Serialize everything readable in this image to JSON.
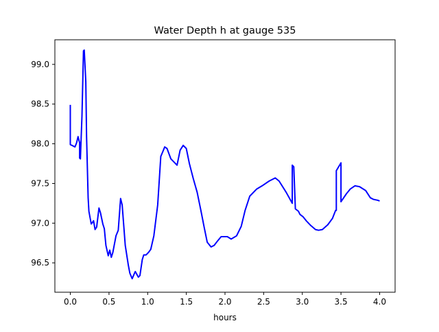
{
  "chart_data": {
    "type": "line",
    "title": "Water Depth h at gauge 535",
    "xlabel": "hours",
    "ylabel": "",
    "xlim": [
      -0.2,
      4.2
    ],
    "ylim": [
      96.13,
      99.31
    ],
    "xticks": [
      0.0,
      0.5,
      1.0,
      1.5,
      2.0,
      2.5,
      3.0,
      3.5,
      4.0
    ],
    "xtick_labels": [
      "0.0",
      "0.5",
      "1.0",
      "1.5",
      "2.0",
      "2.5",
      "3.0",
      "3.5",
      "4.0"
    ],
    "yticks": [
      96.5,
      97.0,
      97.5,
      98.0,
      98.5,
      99.0
    ],
    "ytick_labels": [
      "96.5",
      "97.0",
      "97.5",
      "98.0",
      "98.5",
      "99.0"
    ],
    "grid": false,
    "series": [
      {
        "name": "h",
        "color": "#0000ff",
        "x": [
          0.0,
          0.0,
          0.02,
          0.06,
          0.08,
          0.1,
          0.12,
          0.12,
          0.13,
          0.15,
          0.17,
          0.18,
          0.2,
          0.21,
          0.23,
          0.24,
          0.27,
          0.28,
          0.3,
          0.32,
          0.34,
          0.37,
          0.39,
          0.42,
          0.44,
          0.46,
          0.49,
          0.51,
          0.53,
          0.55,
          0.59,
          0.62,
          0.65,
          0.67,
          0.71,
          0.75,
          0.77,
          0.8,
          0.83,
          0.84,
          0.88,
          0.9,
          0.93,
          0.95,
          0.98,
          1.01,
          1.04,
          1.08,
          1.13,
          1.17,
          1.2,
          1.22,
          1.25,
          1.3,
          1.38,
          1.42,
          1.46,
          1.5,
          1.54,
          1.59,
          1.64,
          1.69,
          1.73,
          1.77,
          1.82,
          1.86,
          1.9,
          1.95,
          2.0,
          2.03,
          2.08,
          2.15,
          2.21,
          2.26,
          2.32,
          2.41,
          2.48,
          2.57,
          2.65,
          2.7,
          2.79,
          2.87,
          2.87,
          2.89,
          2.91,
          2.95,
          2.97,
          3.01,
          3.05,
          3.11,
          3.17,
          3.21,
          3.26,
          3.33,
          3.39,
          3.43,
          3.44,
          3.44,
          3.5,
          3.5,
          3.57,
          3.62,
          3.68,
          3.74,
          3.82,
          3.88,
          3.92,
          3.97,
          4.0
        ],
        "y": [
          98.49,
          97.99,
          97.98,
          97.96,
          98.01,
          98.09,
          98.01,
          97.82,
          97.81,
          98.35,
          99.17,
          99.18,
          98.78,
          98.09,
          97.32,
          97.15,
          96.99,
          97.0,
          97.03,
          96.92,
          96.95,
          97.19,
          97.13,
          96.99,
          96.93,
          96.72,
          96.59,
          96.66,
          96.57,
          96.63,
          96.84,
          96.91,
          97.31,
          97.23,
          96.72,
          96.47,
          96.37,
          96.3,
          96.37,
          96.39,
          96.32,
          96.34,
          96.54,
          96.6,
          96.6,
          96.63,
          96.67,
          96.84,
          97.23,
          97.84,
          97.91,
          97.96,
          97.94,
          97.81,
          97.73,
          97.92,
          97.98,
          97.94,
          97.75,
          97.56,
          97.39,
          97.15,
          96.95,
          96.76,
          96.7,
          96.72,
          96.77,
          96.83,
          96.83,
          96.83,
          96.8,
          96.84,
          96.96,
          97.16,
          97.34,
          97.43,
          97.47,
          97.53,
          97.57,
          97.53,
          97.39,
          97.25,
          97.73,
          97.71,
          97.18,
          97.15,
          97.11,
          97.08,
          97.03,
          96.97,
          96.92,
          96.91,
          96.92,
          96.98,
          97.06,
          97.16,
          97.16,
          97.66,
          97.76,
          97.27,
          97.37,
          97.43,
          97.47,
          97.46,
          97.41,
          97.32,
          97.3,
          97.29,
          97.28
        ]
      }
    ]
  }
}
